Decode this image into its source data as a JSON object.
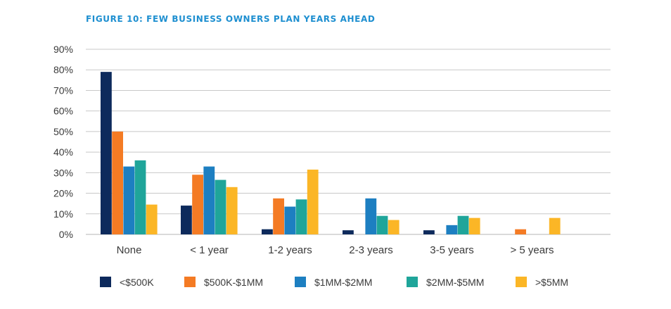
{
  "figure_title": "FIGURE 10: FEW BUSINESS OWNERS PLAN YEARS AHEAD",
  "chart_data": {
    "type": "bar",
    "title": "FIGURE 10: FEW BUSINESS OWNERS PLAN YEARS AHEAD",
    "xlabel": "",
    "ylabel": "",
    "ylim": [
      0,
      90
    ],
    "y_ticks": [
      0,
      10,
      20,
      30,
      40,
      50,
      60,
      70,
      80,
      90
    ],
    "y_tick_labels": [
      "0%",
      "10%",
      "20%",
      "30%",
      "40%",
      "50%",
      "60%",
      "70%",
      "80%",
      "90%"
    ],
    "grid": true,
    "legend_position": "bottom",
    "categories": [
      "None",
      "< 1 year",
      "1-2 years",
      "2-3 years",
      "3-5 years",
      "> 5 years"
    ],
    "series": [
      {
        "name": "<$500K",
        "color": "#0d2a5c",
        "values": [
          79,
          14,
          2.5,
          2,
          2,
          0
        ]
      },
      {
        "name": "$500K-$1MM",
        "color": "#f47b24",
        "values": [
          50,
          29,
          17.5,
          0,
          0,
          2.5
        ]
      },
      {
        "name": "$1MM-$2MM",
        "color": "#1d7fc1",
        "values": [
          33,
          33,
          13.5,
          17.5,
          4.5,
          0
        ]
      },
      {
        "name": "$2MM-$5MM",
        "color": "#1fa59a",
        "values": [
          36,
          26.5,
          17,
          9,
          9,
          0
        ]
      },
      {
        "name": ">$5MM",
        "color": "#fbb626",
        "values": [
          14.5,
          23,
          31.5,
          7,
          8,
          8
        ]
      }
    ]
  },
  "colors": {
    "title": "#1e8fd0",
    "grid": "#c8c8c8",
    "text": "#3a3a3a"
  }
}
